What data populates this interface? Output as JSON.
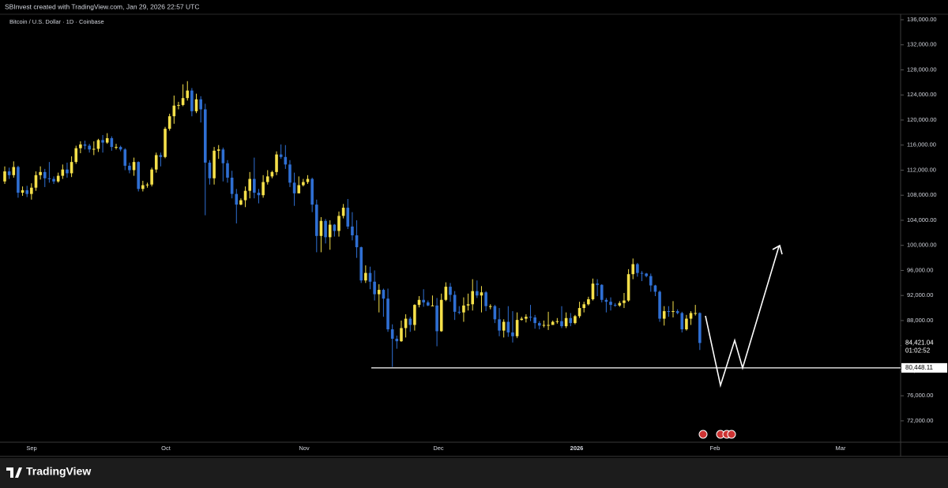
{
  "chart_data": {
    "type": "candlestick",
    "header": "SBInvest created with TradingView.com, Jan 29, 2026 22:57 UTC",
    "title": "Bitcoin / U.S. Dollar · 1D · Coinbase",
    "x_labels": [
      "Sep",
      "Oct",
      "Nov",
      "Dec",
      "2026",
      "Feb",
      "Mar"
    ],
    "up_color": "#f5e04a",
    "down_color": "#2f6fd3",
    "ylim": [
      68590,
      136880
    ],
    "yticks": [
      {
        "value": 72000,
        "label": "72,000.00"
      },
      {
        "value": 76000,
        "label": "76,000.00"
      },
      {
        "value": 80000,
        "label": "80,000.00"
      },
      {
        "value": 84000,
        "label": "84,000.00"
      },
      {
        "value": 88000,
        "label": "88,000.00"
      },
      {
        "value": 92000,
        "label": "92,000.00"
      },
      {
        "value": 96000,
        "label": "96,000.00"
      },
      {
        "value": 100000,
        "label": "100,000.00"
      },
      {
        "value": 104000,
        "label": "104,000.00"
      },
      {
        "value": 108000,
        "label": "108,000.00"
      },
      {
        "value": 112000,
        "label": "112,000.00"
      },
      {
        "value": 116000,
        "label": "116,000.00"
      },
      {
        "value": 120000,
        "label": "120,000.00"
      },
      {
        "value": 124000,
        "label": "124,000.00"
      },
      {
        "value": 128000,
        "label": "128,000.00"
      },
      {
        "value": 132000,
        "label": "132,000.00"
      },
      {
        "value": 136000,
        "label": "136,000.00"
      }
    ],
    "grid": false,
    "open": [
      110200,
      111800,
      111200,
      112500,
      108400,
      108800,
      108200,
      109200,
      111200,
      111700,
      110700,
      110600,
      110200,
      111100,
      112100,
      111500,
      113300,
      115500,
      116100,
      115900,
      115300,
      115400,
      116800,
      116400,
      117100,
      115700,
      115700,
      115300,
      112700,
      112000,
      113300,
      109000,
      109600,
      109700,
      112100,
      114400,
      114100,
      118600,
      120600,
      122300,
      122400,
      123500,
      124700,
      121400,
      123300,
      121700,
      113200,
      110700,
      115100,
      115300,
      113100,
      110800,
      108200,
      106500,
      107200,
      108700,
      110600,
      108400,
      108000,
      110100,
      111000,
      111700,
      114500,
      114100,
      112900,
      110000,
      108300,
      109600,
      110100,
      110600,
      106500,
      101500,
      103900,
      101300,
      103300,
      102300,
      104700,
      106000,
      103000,
      101600,
      99700,
      94400,
      95600,
      94200,
      92200,
      92900,
      91500,
      86600,
      85100,
      84700,
      86800,
      88300,
      87300,
      90500,
      91300,
      90900,
      90400,
      90400,
      86300,
      91300,
      93400,
      92100,
      89400,
      89300,
      90400,
      90600,
      92700,
      92000,
      92500,
      90300,
      90300,
      88200,
      86400,
      87800,
      86100,
      85500,
      88100,
      88300,
      88600,
      88500,
      87600,
      87200,
      87300,
      87300,
      87800,
      87900,
      87100,
      88400,
      87600,
      88700,
      90000,
      90600,
      91400,
      93900,
      93700,
      91300,
      91000,
      90500,
      90400,
      90800,
      91200,
      95400,
      97000,
      95600,
      95500,
      95100,
      93600,
      92600,
      88300,
      89500,
      89400,
      89500,
      89200,
      86600,
      88300,
      89200,
      89200
    ],
    "high": [
      112600,
      112400,
      113400,
      112700,
      109400,
      109500,
      109900,
      111800,
      112600,
      112200,
      113300,
      111000,
      111600,
      112900,
      113200,
      114200,
      115900,
      116600,
      116700,
      116200,
      116600,
      117000,
      117600,
      117900,
      117400,
      116200,
      115900,
      115500,
      113200,
      114000,
      113400,
      110300,
      110000,
      112400,
      114800,
      114800,
      118900,
      121000,
      123900,
      122900,
      125700,
      126200,
      125100,
      124200,
      123800,
      122600,
      113600,
      115700,
      116000,
      115600,
      113600,
      111900,
      109000,
      107500,
      109400,
      111700,
      114000,
      109000,
      111200,
      112000,
      111900,
      115000,
      116100,
      116000,
      113600,
      111600,
      111000,
      110600,
      111200,
      110800,
      107300,
      104500,
      104200,
      104000,
      103400,
      105400,
      106600,
      107400,
      105300,
      104000,
      99800,
      96800,
      96600,
      96000,
      93800,
      93100,
      93100,
      87400,
      85600,
      88000,
      89000,
      88600,
      90600,
      91900,
      93000,
      91200,
      92000,
      91600,
      92300,
      94100,
      94000,
      92700,
      90300,
      91700,
      92300,
      94600,
      94400,
      93500,
      92700,
      90600,
      90500,
      90000,
      88200,
      90300,
      89500,
      89300,
      88600,
      89000,
      90500,
      88900,
      87900,
      88000,
      89400,
      88000,
      88400,
      90300,
      89300,
      89200,
      88900,
      91000,
      91000,
      91800,
      94700,
      94600,
      93800,
      91600,
      91700,
      90800,
      91100,
      92400,
      96200,
      97900,
      97200,
      95900,
      95600,
      95500,
      93700,
      92800,
      90300,
      90300,
      91100,
      89800,
      89400,
      88900,
      89500,
      90500,
      89300
    ],
    "low": [
      109800,
      110600,
      110800,
      107600,
      107900,
      107700,
      107300,
      108700,
      110500,
      109300,
      110000,
      109800,
      110000,
      110600,
      110800,
      110900,
      113000,
      114700,
      115300,
      114800,
      114400,
      114900,
      114800,
      116200,
      115100,
      115300,
      115000,
      112000,
      111500,
      111100,
      108600,
      108600,
      109200,
      109400,
      111600,
      112600,
      113900,
      118300,
      119400,
      121700,
      122200,
      123100,
      120600,
      121100,
      119600,
      104800,
      109700,
      109700,
      113800,
      110200,
      110000,
      107500,
      103500,
      106400,
      106100,
      107500,
      107500,
      106700,
      107600,
      109700,
      110700,
      111200,
      113800,
      112200,
      109300,
      106300,
      108300,
      109400,
      109800,
      105300,
      98900,
      98900,
      100300,
      99300,
      101400,
      101400,
      104300,
      102600,
      100800,
      98000,
      94000,
      94000,
      93000,
      91200,
      89300,
      88600,
      86200,
      80600,
      83500,
      84600,
      85300,
      86200,
      86400,
      90100,
      90200,
      90300,
      90300,
      83900,
      86200,
      91100,
      91000,
      88100,
      89000,
      87800,
      89600,
      89600,
      91600,
      89300,
      89500,
      89800,
      87600,
      85500,
      85300,
      85400,
      84500,
      85200,
      88000,
      87700,
      87900,
      86700,
      86600,
      86900,
      86500,
      87300,
      87500,
      86800,
      86800,
      87100,
      87400,
      88400,
      89300,
      90400,
      91200,
      91900,
      90900,
      89300,
      89600,
      90200,
      90200,
      90000,
      91000,
      94600,
      95000,
      94300,
      94900,
      92600,
      91900,
      87800,
      87200,
      88600,
      88500,
      89000,
      86100,
      86400,
      87300,
      88800,
      83300
    ],
    "close": [
      111800,
      111200,
      112500,
      108400,
      108800,
      108200,
      109200,
      111200,
      111700,
      110700,
      110600,
      110200,
      111100,
      112100,
      111500,
      113300,
      115500,
      116100,
      115900,
      115300,
      115400,
      116800,
      116400,
      117100,
      115700,
      115700,
      115300,
      112700,
      112000,
      113300,
      109000,
      109600,
      109700,
      112100,
      114400,
      114100,
      118600,
      120600,
      122300,
      122400,
      123500,
      124700,
      121400,
      123300,
      121700,
      113200,
      110700,
      115100,
      115300,
      113100,
      110800,
      108200,
      106500,
      107200,
      108700,
      110600,
      108400,
      108000,
      110100,
      111000,
      111700,
      114500,
      114100,
      112900,
      110000,
      108300,
      109600,
      110100,
      110600,
      106500,
      101500,
      103900,
      101300,
      103300,
      102300,
      104700,
      106000,
      103000,
      101600,
      99700,
      94400,
      95600,
      94200,
      92200,
      92900,
      91500,
      86600,
      85100,
      84700,
      86800,
      88300,
      87300,
      90500,
      91300,
      90900,
      90400,
      90400,
      86300,
      91300,
      93400,
      92100,
      89400,
      89300,
      90400,
      90600,
      92700,
      92000,
      92500,
      90300,
      90300,
      88200,
      86400,
      87800,
      86100,
      85500,
      88100,
      88300,
      88600,
      88500,
      87600,
      87200,
      87300,
      87300,
      87800,
      87900,
      87100,
      88400,
      87600,
      88700,
      90000,
      90600,
      91400,
      93900,
      93700,
      91300,
      91000,
      90500,
      90400,
      90800,
      91200,
      95400,
      97000,
      95600,
      95500,
      95100,
      93600,
      92600,
      88300,
      89500,
      89400,
      89500,
      89200,
      86600,
      88300,
      89200,
      89200,
      84421.04
    ],
    "last_label": "84,421.04",
    "countdown": "01:02:52",
    "hline": {
      "value": 80448.11,
      "label": "80,448.11",
      "color": "#ffffff"
    },
    "brand": "TradingView"
  }
}
